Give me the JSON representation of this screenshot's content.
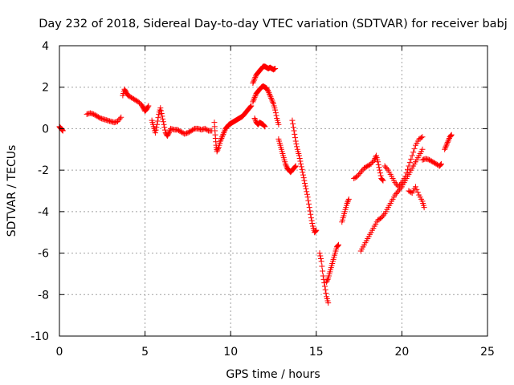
{
  "chart_data": {
    "type": "scatter",
    "title": "Day 232 of 2018, Sidereal Day-to-day VTEC variation (SDTVAR) for receiver babj",
    "xlabel": "GPS time / hours",
    "ylabel": "SDTVAR / TECUs",
    "xlim": [
      0,
      25
    ],
    "ylim": [
      -10,
      4
    ],
    "xticks": [
      0,
      5,
      10,
      15,
      20,
      25
    ],
    "yticks": [
      -10,
      -8,
      -6,
      -4,
      -2,
      0,
      2,
      4
    ],
    "grid": true,
    "marker": "+",
    "color": "#ff0000",
    "series": [
      {
        "name": "SDTVAR",
        "segments": [
          [
            [
              0.0,
              0.1
            ],
            [
              0.05,
              0.05
            ],
            [
              0.1,
              0.0
            ],
            [
              0.15,
              -0.05
            ],
            [
              0.2,
              -0.1
            ]
          ],
          [
            [
              1.6,
              0.7
            ],
            [
              1.8,
              0.75
            ],
            [
              2.0,
              0.7
            ],
            [
              2.2,
              0.6
            ],
            [
              2.4,
              0.5
            ],
            [
              2.6,
              0.45
            ],
            [
              2.8,
              0.4
            ],
            [
              3.0,
              0.35
            ],
            [
              3.2,
              0.3
            ],
            [
              3.4,
              0.35
            ],
            [
              3.6,
              0.55
            ]
          ],
          [
            [
              3.7,
              1.6
            ],
            [
              3.8,
              1.9
            ],
            [
              3.9,
              1.75
            ],
            [
              4.0,
              1.6
            ],
            [
              4.2,
              1.5
            ],
            [
              4.4,
              1.4
            ],
            [
              4.6,
              1.3
            ],
            [
              4.8,
              1.15
            ],
            [
              4.9,
              1.0
            ],
            [
              5.0,
              0.85
            ],
            [
              5.1,
              0.95
            ],
            [
              5.2,
              1.1
            ]
          ],
          [
            [
              5.4,
              0.4
            ],
            [
              5.5,
              0.1
            ],
            [
              5.6,
              -0.2
            ],
            [
              5.7,
              0.2
            ],
            [
              5.8,
              0.7
            ],
            [
              5.9,
              1.0
            ],
            [
              6.0,
              0.6
            ],
            [
              6.1,
              0.2
            ],
            [
              6.2,
              -0.2
            ],
            [
              6.3,
              -0.35
            ],
            [
              6.4,
              -0.2
            ],
            [
              6.5,
              0.0
            ],
            [
              6.7,
              -0.05
            ],
            [
              6.9,
              -0.05
            ],
            [
              7.1,
              -0.15
            ],
            [
              7.3,
              -0.25
            ],
            [
              7.5,
              -0.2
            ],
            [
              7.7,
              -0.1
            ],
            [
              7.9,
              0.0
            ],
            [
              8.1,
              0.0
            ],
            [
              8.3,
              -0.05
            ],
            [
              8.5,
              0.0
            ],
            [
              8.7,
              -0.1
            ],
            [
              8.9,
              -0.1
            ]
          ],
          [
            [
              9.05,
              0.3
            ],
            [
              9.1,
              -0.3
            ],
            [
              9.15,
              -0.8
            ],
            [
              9.2,
              -1.1
            ],
            [
              9.3,
              -0.9
            ],
            [
              9.4,
              -0.6
            ],
            [
              9.5,
              -0.4
            ],
            [
              9.6,
              -0.2
            ],
            [
              9.7,
              0.0
            ],
            [
              9.8,
              0.1
            ],
            [
              9.9,
              0.2
            ],
            [
              10.0,
              0.25
            ],
            [
              10.1,
              0.3
            ],
            [
              10.2,
              0.35
            ],
            [
              10.3,
              0.4
            ],
            [
              10.4,
              0.45
            ],
            [
              10.5,
              0.5
            ],
            [
              10.6,
              0.55
            ],
            [
              10.7,
              0.6
            ],
            [
              10.8,
              0.7
            ],
            [
              10.9,
              0.8
            ],
            [
              11.0,
              0.9
            ],
            [
              11.1,
              1.0
            ],
            [
              11.2,
              1.1
            ]
          ],
          [
            [
              11.3,
              2.2
            ],
            [
              11.4,
              2.4
            ],
            [
              11.5,
              2.6
            ],
            [
              11.6,
              2.7
            ],
            [
              11.7,
              2.8
            ],
            [
              11.8,
              2.9
            ],
            [
              11.9,
              3.0
            ],
            [
              12.0,
              3.0
            ],
            [
              12.1,
              2.95
            ],
            [
              12.2,
              2.9
            ],
            [
              12.3,
              2.95
            ],
            [
              12.4,
              2.9
            ],
            [
              12.5,
              2.85
            ],
            [
              12.6,
              2.9
            ]
          ],
          [
            [
              11.3,
              1.3
            ],
            [
              11.4,
              1.5
            ],
            [
              11.5,
              1.7
            ],
            [
              11.6,
              1.8
            ],
            [
              11.7,
              1.9
            ],
            [
              11.8,
              2.0
            ],
            [
              11.9,
              2.05
            ],
            [
              12.0,
              2.0
            ],
            [
              12.1,
              1.95
            ],
            [
              12.2,
              1.8
            ],
            [
              12.3,
              1.6
            ],
            [
              12.4,
              1.4
            ],
            [
              12.5,
              1.2
            ],
            [
              12.6,
              0.9
            ],
            [
              12.7,
              0.5
            ],
            [
              12.8,
              0.2
            ]
          ],
          [
            [
              11.4,
              0.5
            ],
            [
              11.5,
              0.3
            ],
            [
              11.6,
              0.2
            ],
            [
              11.7,
              0.3
            ],
            [
              11.8,
              0.25
            ],
            [
              11.9,
              0.2
            ],
            [
              12.0,
              0.1
            ]
          ],
          [
            [
              12.8,
              -0.5
            ],
            [
              12.9,
              -0.8
            ],
            [
              13.0,
              -1.1
            ],
            [
              13.1,
              -1.4
            ],
            [
              13.2,
              -1.7
            ],
            [
              13.3,
              -1.9
            ],
            [
              13.4,
              -2.0
            ],
            [
              13.5,
              -2.1
            ],
            [
              13.6,
              -2.0
            ],
            [
              13.7,
              -1.9
            ],
            [
              13.8,
              -1.8
            ]
          ],
          [
            [
              13.6,
              0.4
            ],
            [
              13.7,
              -0.1
            ],
            [
              13.8,
              -0.6
            ],
            [
              13.9,
              -1.0
            ],
            [
              14.0,
              -1.3
            ],
            [
              14.1,
              -1.7
            ],
            [
              14.2,
              -2.1
            ],
            [
              14.3,
              -2.5
            ],
            [
              14.4,
              -2.9
            ],
            [
              14.5,
              -3.3
            ],
            [
              14.6,
              -3.8
            ],
            [
              14.7,
              -4.3
            ],
            [
              14.8,
              -4.7
            ],
            [
              14.9,
              -5.0
            ],
            [
              15.0,
              -4.9
            ]
          ],
          [
            [
              15.2,
              -6.0
            ],
            [
              15.3,
              -6.4
            ],
            [
              15.4,
              -7.1
            ],
            [
              15.5,
              -7.6
            ],
            [
              15.6,
              -8.1
            ],
            [
              15.7,
              -8.4
            ]
          ],
          [
            [
              15.6,
              -7.4
            ],
            [
              15.7,
              -7.2
            ],
            [
              15.8,
              -6.9
            ],
            [
              15.9,
              -6.6
            ],
            [
              16.0,
              -6.3
            ],
            [
              16.1,
              -6.0
            ],
            [
              16.2,
              -5.7
            ],
            [
              16.3,
              -5.6
            ]
          ],
          [
            [
              16.5,
              -4.5
            ],
            [
              16.6,
              -4.2
            ],
            [
              16.7,
              -3.9
            ],
            [
              16.8,
              -3.6
            ],
            [
              16.9,
              -3.4
            ]
          ],
          [
            [
              17.2,
              -2.4
            ],
            [
              17.4,
              -2.3
            ],
            [
              17.6,
              -2.1
            ],
            [
              17.8,
              -1.9
            ],
            [
              18.0,
              -1.8
            ],
            [
              18.2,
              -1.7
            ],
            [
              18.4,
              -1.5
            ],
            [
              18.5,
              -1.3
            ],
            [
              18.6,
              -1.6
            ],
            [
              18.7,
              -2.0
            ],
            [
              18.8,
              -2.4
            ],
            [
              18.9,
              -2.5
            ]
          ],
          [
            [
              17.6,
              -5.9
            ],
            [
              17.8,
              -5.6
            ],
            [
              18.0,
              -5.3
            ],
            [
              18.2,
              -5.0
            ],
            [
              18.4,
              -4.7
            ],
            [
              18.6,
              -4.4
            ],
            [
              18.8,
              -4.3
            ],
            [
              19.0,
              -4.1
            ],
            [
              19.2,
              -3.8
            ],
            [
              19.4,
              -3.5
            ],
            [
              19.6,
              -3.2
            ],
            [
              19.8,
              -3.0
            ],
            [
              20.0,
              -2.8
            ],
            [
              20.2,
              -2.5
            ],
            [
              20.4,
              -2.2
            ],
            [
              20.6,
              -1.9
            ],
            [
              20.8,
              -1.6
            ],
            [
              21.0,
              -1.3
            ],
            [
              21.2,
              -1.0
            ]
          ],
          [
            [
              19.0,
              -1.8
            ],
            [
              19.2,
              -2.0
            ],
            [
              19.4,
              -2.3
            ],
            [
              19.6,
              -2.6
            ],
            [
              19.8,
              -2.8
            ],
            [
              20.0,
              -2.6
            ],
            [
              20.2,
              -2.3
            ],
            [
              20.4,
              -1.8
            ],
            [
              20.6,
              -1.3
            ],
            [
              20.8,
              -0.8
            ],
            [
              21.0,
              -0.5
            ],
            [
              21.2,
              -0.4
            ]
          ],
          [
            [
              20.4,
              -3.0
            ],
            [
              20.6,
              -3.1
            ],
            [
              20.8,
              -2.8
            ],
            [
              21.0,
              -3.2
            ],
            [
              21.2,
              -3.5
            ],
            [
              21.3,
              -3.8
            ]
          ],
          [
            [
              21.2,
              -1.5
            ],
            [
              21.4,
              -1.45
            ],
            [
              21.6,
              -1.5
            ],
            [
              21.8,
              -1.6
            ],
            [
              22.0,
              -1.7
            ],
            [
              22.2,
              -1.8
            ],
            [
              22.3,
              -1.7
            ]
          ],
          [
            [
              22.5,
              -1.0
            ],
            [
              22.6,
              -0.8
            ],
            [
              22.7,
              -0.6
            ],
            [
              22.8,
              -0.4
            ],
            [
              22.9,
              -0.3
            ]
          ]
        ]
      }
    ]
  }
}
